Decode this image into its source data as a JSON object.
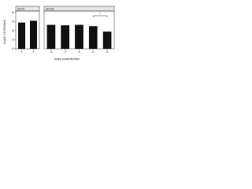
{
  "chart_data": [
    {
      "type": "bar",
      "title": "adult",
      "y_label": "log10 TCID50/mL",
      "categories": [
        "0",
        "4"
      ],
      "values": [
        5.8,
        6.2
      ],
      "color": "#111111",
      "ylim": [
        0,
        8
      ],
      "yticks": [
        0,
        2,
        4,
        6,
        8
      ]
    },
    {
      "type": "bar",
      "title": "larvae",
      "x_label": "Days postinfection",
      "categories": [
        "0",
        "2",
        "4",
        "6",
        "8"
      ],
      "values": [
        5.3,
        5.2,
        5.3,
        5.0,
        3.8
      ],
      "color": "#111111",
      "ylim": [
        0,
        8
      ],
      "annotation": "*"
    }
  ]
}
